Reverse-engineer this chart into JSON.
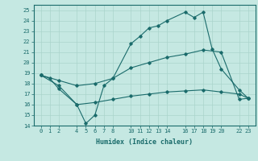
{
  "xlabel": "Humidex (Indice chaleur)",
  "x_ticks": [
    0,
    1,
    2,
    4,
    5,
    6,
    7,
    8,
    10,
    11,
    12,
    13,
    14,
    16,
    17,
    18,
    19,
    20,
    22,
    23
  ],
  "ylim": [
    14,
    25.5
  ],
  "yticks": [
    14,
    15,
    16,
    17,
    18,
    19,
    20,
    21,
    22,
    23,
    24,
    25
  ],
  "bg_color": "#c5e8e2",
  "line_color": "#1a6b6b",
  "grid_color": "#aad4cc",
  "line1_x": [
    0,
    1,
    2,
    4,
    5,
    6,
    7,
    8,
    10,
    11,
    12,
    13,
    14,
    16,
    17,
    18,
    19,
    20,
    22,
    23
  ],
  "line1_y": [
    18.8,
    18.5,
    17.5,
    16.0,
    14.2,
    15.0,
    17.8,
    18.5,
    21.8,
    22.5,
    23.3,
    23.5,
    24.0,
    24.8,
    24.3,
    24.8,
    21.3,
    19.4,
    17.4,
    16.6
  ],
  "line2_x": [
    0,
    2,
    4,
    6,
    8,
    10,
    12,
    14,
    16,
    18,
    20,
    22,
    23
  ],
  "line2_y": [
    18.8,
    18.3,
    17.8,
    18.0,
    18.5,
    19.5,
    20.0,
    20.5,
    20.8,
    21.2,
    21.0,
    16.5,
    16.6
  ],
  "line3_x": [
    0,
    2,
    4,
    6,
    8,
    10,
    12,
    14,
    16,
    18,
    20,
    22,
    23
  ],
  "line3_y": [
    18.8,
    17.8,
    16.0,
    16.2,
    16.5,
    16.8,
    17.0,
    17.2,
    17.3,
    17.4,
    17.2,
    17.0,
    16.6
  ]
}
